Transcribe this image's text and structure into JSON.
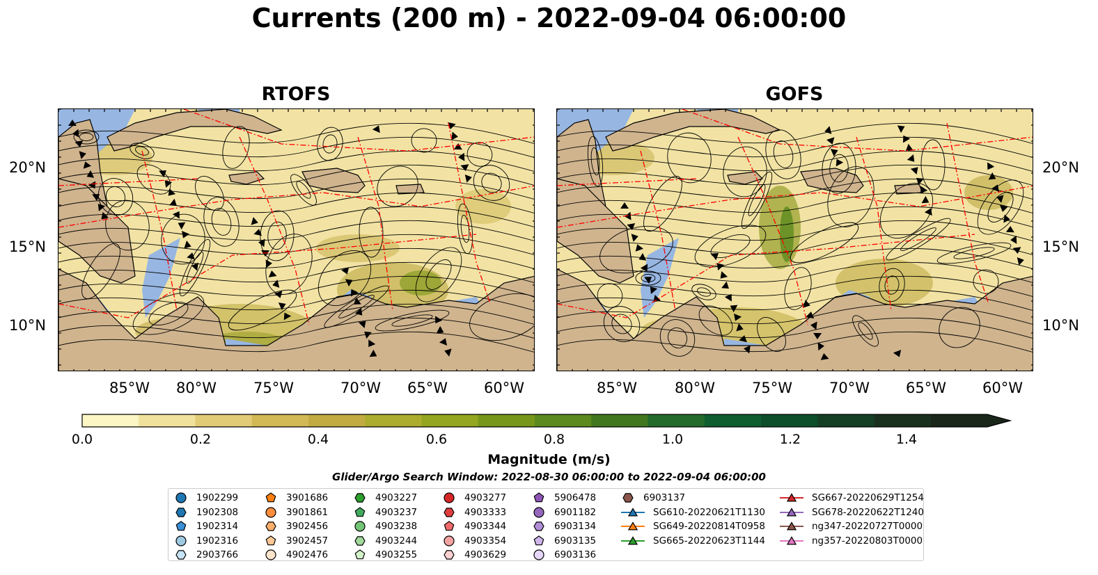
{
  "title": "Currents (200 m) - 2022-09-04 06:00:00",
  "panels": [
    {
      "title": "RTOFS"
    },
    {
      "title": "GOFS"
    }
  ],
  "axes": {
    "lat_labels": [
      "20°N",
      "15°N",
      "10°N"
    ],
    "lon_labels": [
      "85°W",
      "80°W",
      "75°W",
      "70°W",
      "65°W",
      "60°W"
    ]
  },
  "colorbar": {
    "label": "Magnitude (m/s)",
    "ticks": [
      "0.0",
      "0.2",
      "0.4",
      "0.6",
      "0.8",
      "1.0",
      "1.2",
      "1.4"
    ],
    "colors": [
      "#fbf6c3",
      "#f0e29c",
      "#e2cb76",
      "#d3b856",
      "#c2ab40",
      "#acad2e",
      "#94a61f",
      "#77971a",
      "#5d8a1e",
      "#41781f",
      "#236b2a",
      "#0f5e30",
      "#0d4e2b",
      "#143f25",
      "#1a301f",
      "#1b261a"
    ]
  },
  "subtitle": "Glider/Argo Search Window: 2022-08-30 06:00:00 to 2022-09-04 06:00:00",
  "legend": {
    "columns": [
      [
        {
          "label": "1902299",
          "marker": "circle",
          "color": "#1f77b4"
        },
        {
          "label": "1902308",
          "marker": "hexagon",
          "color": "#1f77b4"
        },
        {
          "label": "1902314",
          "marker": "pentagon",
          "color": "#3a8fd6"
        },
        {
          "label": "1902316",
          "marker": "circle",
          "color": "#9ecae1"
        },
        {
          "label": "2903766",
          "marker": "hexagon",
          "color": "#c6e4f5"
        }
      ],
      [
        {
          "label": "3901686",
          "marker": "pentagon",
          "color": "#ff7f0e"
        },
        {
          "label": "3901861",
          "marker": "circle",
          "color": "#fd8d3c"
        },
        {
          "label": "3902456",
          "marker": "hexagon",
          "color": "#fdae6b"
        },
        {
          "label": "3902457",
          "marker": "pentagon",
          "color": "#fdc896"
        },
        {
          "label": "4902476",
          "marker": "circle",
          "color": "#fde5cc"
        }
      ],
      [
        {
          "label": "4903227",
          "marker": "hexagon",
          "color": "#2ca02c"
        },
        {
          "label": "4903237",
          "marker": "pentagon",
          "color": "#41ab5d"
        },
        {
          "label": "4903238",
          "marker": "circle",
          "color": "#74c476"
        },
        {
          "label": "4903244",
          "marker": "hexagon",
          "color": "#a1d99b"
        },
        {
          "label": "4903255",
          "marker": "pentagon",
          "color": "#d4f2c9"
        }
      ],
      [
        {
          "label": "4903277",
          "marker": "circle",
          "color": "#d62728"
        },
        {
          "label": "4903333",
          "marker": "hexagon",
          "color": "#e03e3e"
        },
        {
          "label": "4903344",
          "marker": "pentagon",
          "color": "#ef6a6a"
        },
        {
          "label": "4903354",
          "marker": "circle",
          "color": "#f4a3a3"
        },
        {
          "label": "4903629",
          "marker": "hexagon",
          "color": "#fbd0d0"
        }
      ],
      [
        {
          "label": "5906478",
          "marker": "pentagon",
          "color": "#8e54b8"
        },
        {
          "label": "6901182",
          "marker": "circle",
          "color": "#9467bd"
        },
        {
          "label": "6903134",
          "marker": "hexagon",
          "color": "#b08dd6"
        },
        {
          "label": "6903135",
          "marker": "pentagon",
          "color": "#cdb4ea"
        },
        {
          "label": "6903136",
          "marker": "circle",
          "color": "#e6d6f7"
        }
      ],
      [
        {
          "label": "6903137",
          "marker": "hexagon",
          "color": "#8c564b"
        },
        {
          "label": "SG610-20220621T1130",
          "marker": "triangle",
          "color": "#1f77b4"
        },
        {
          "label": "SG649-20220814T0958",
          "marker": "triangle",
          "color": "#ff7f0e"
        },
        {
          "label": "SG665-20220623T1144",
          "marker": "triangle",
          "color": "#2ca02c"
        }
      ],
      [
        {
          "label": "SG667-20220629T1254",
          "marker": "triangle",
          "color": "#d62728"
        },
        {
          "label": "SG678-20220622T1240",
          "marker": "triangle",
          "color": "#9467bd"
        },
        {
          "label": "ng347-20220727T0000",
          "marker": "triangle",
          "color": "#8c564b"
        },
        {
          "label": "ng357-20220803T0000",
          "marker": "triangle",
          "color": "#e377c2"
        }
      ]
    ]
  },
  "colors": {
    "land": "#cfb48e",
    "shallow_water": "#97b6e2",
    "eez_lines": "#ff0000"
  }
}
